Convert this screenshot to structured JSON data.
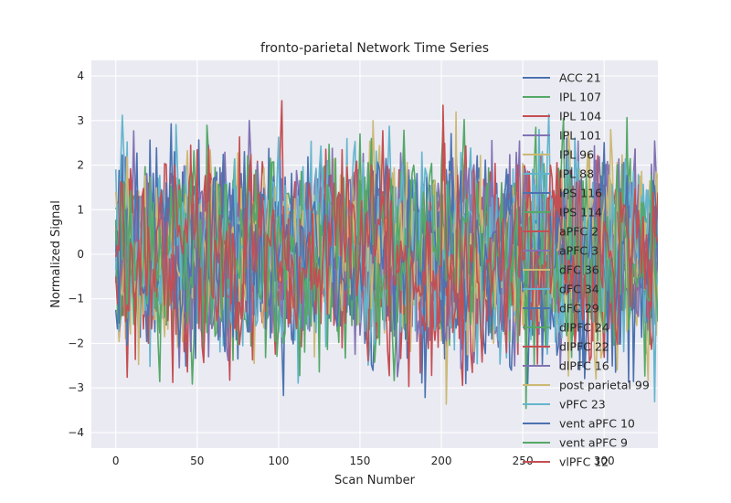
{
  "chart_data": {
    "type": "line",
    "title": "fronto-parietal Network Time Series",
    "xlabel": "Scan Number",
    "ylabel": "Normalized Signal",
    "xlim": [
      -15,
      333
    ],
    "ylim": [
      -4.35,
      4.35
    ],
    "xticks": [
      0,
      50,
      100,
      150,
      200,
      250,
      300
    ],
    "yticks": [
      -4,
      -3,
      -2,
      -1,
      0,
      1,
      2,
      3,
      4
    ],
    "grid": true,
    "legend_position": "right",
    "n_points": 335,
    "series": [
      {
        "name": "ACC 21",
        "color": "#4C72B0"
      },
      {
        "name": "IPL 107",
        "color": "#55A868"
      },
      {
        "name": "IPL 104",
        "color": "#C44E52"
      },
      {
        "name": "IPL 101",
        "color": "#8172B2"
      },
      {
        "name": "IPL 96",
        "color": "#CCB974"
      },
      {
        "name": "IPL 88",
        "color": "#64B5CD"
      },
      {
        "name": "IPS 116",
        "color": "#4C72B0"
      },
      {
        "name": "IPS 114",
        "color": "#55A868"
      },
      {
        "name": "aPFC 2",
        "color": "#C44E52"
      },
      {
        "name": "aPFC 3",
        "color": "#8172B2"
      },
      {
        "name": "dFC 36",
        "color": "#CCB974"
      },
      {
        "name": "dFC 34",
        "color": "#64B5CD"
      },
      {
        "name": "dFC 29",
        "color": "#4C72B0"
      },
      {
        "name": "dlPFC 24",
        "color": "#55A868"
      },
      {
        "name": "dlPFC 22",
        "color": "#C44E52"
      },
      {
        "name": "dlPFC 16",
        "color": "#8172B2"
      },
      {
        "name": "post parietal 99",
        "color": "#CCB974"
      },
      {
        "name": "vPFC 23",
        "color": "#64B5CD"
      },
      {
        "name": "vent aPFC 10",
        "color": "#4C72B0"
      },
      {
        "name": "vent aPFC 9",
        "color": "#55A868"
      },
      {
        "name": "vlPFC 12",
        "color": "#C44E52"
      }
    ]
  }
}
